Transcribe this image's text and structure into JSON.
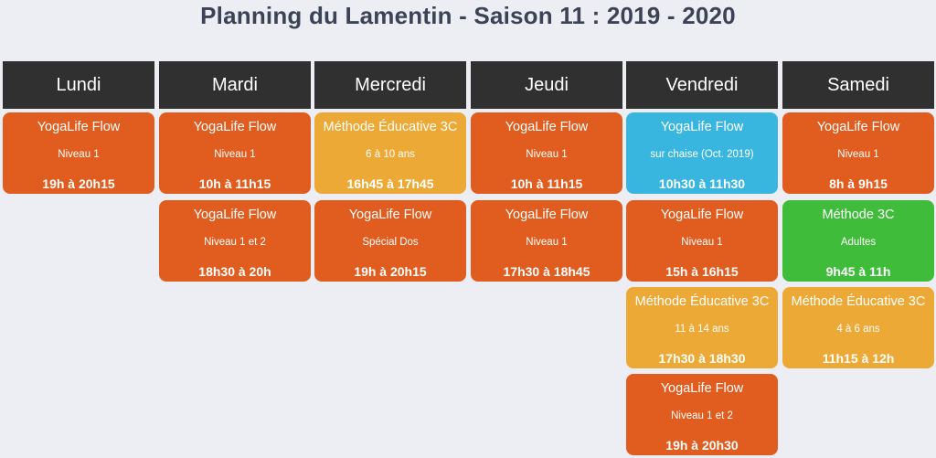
{
  "title": "Planning du Lamentin - Saison 11 : 2019 - 2020",
  "days": [
    {
      "name": "Lundi",
      "sessions": [
        {
          "name": "YogaLife Flow",
          "level": "Niveau 1",
          "time": "19h à 20h15",
          "color": "#e05c1f"
        }
      ]
    },
    {
      "name": "Mardi",
      "sessions": [
        {
          "name": "YogaLife Flow",
          "level": "Niveau 1",
          "time": "10h à 11h15",
          "color": "#e05c1f"
        },
        {
          "name": "YogaLife Flow",
          "level": "Niveau 1 et 2",
          "time": "18h30 à 20h",
          "color": "#e05c1f"
        }
      ]
    },
    {
      "name": "Mercredi",
      "sessions": [
        {
          "name": "Méthode Éducative 3C",
          "level": "6 à 10 ans",
          "time": "16h45 à 17h45",
          "color": "#eda935"
        },
        {
          "name": "YogaLife Flow",
          "level": "Spécial Dos",
          "time": "19h à 20h15",
          "color": "#e05c1f"
        }
      ]
    },
    {
      "name": "Jeudi",
      "sessions": [
        {
          "name": "YogaLife Flow",
          "level": "Niveau 1",
          "time": "10h à 11h15",
          "color": "#e05c1f"
        },
        {
          "name": "YogaLife Flow",
          "level": "Niveau 1",
          "time": "17h30 à 18h45",
          "color": "#e05c1f"
        }
      ]
    },
    {
      "name": "Vendredi",
      "sessions": [
        {
          "name": "YogaLife Flow",
          "level": "sur chaise (Oct. 2019)",
          "time": "10h30 à 11h30",
          "color": "#39b6e0"
        },
        {
          "name": "YogaLife Flow",
          "level": "Niveau 1",
          "time": "15h à 16h15",
          "color": "#e05c1f"
        },
        {
          "name": "Méthode Éducative 3C",
          "level": "11 à 14 ans",
          "time": "17h30 à 18h30",
          "color": "#eda935"
        },
        {
          "name": "YogaLife Flow",
          "level": "Niveau 1 et 2",
          "time": "19h à 20h30",
          "color": "#e05c1f"
        }
      ]
    },
    {
      "name": "Samedi",
      "sessions": [
        {
          "name": "YogaLife Flow",
          "level": "Niveau 1",
          "time": "8h à 9h15",
          "color": "#e05c1f"
        },
        {
          "name": "Méthode 3C",
          "level": "Adultes",
          "time": "9h45 à 11h",
          "color": "#3fbc3a"
        },
        {
          "name": "Méthode Éducative 3C",
          "level": "4 à 6 ans",
          "time": "11h15 à 12h",
          "color": "#eda935"
        }
      ]
    }
  ]
}
